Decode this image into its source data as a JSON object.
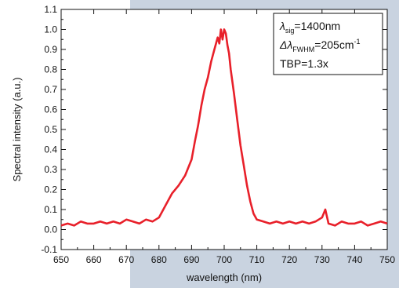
{
  "chart_data": {
    "type": "line",
    "xlabel": "wavelength (nm)",
    "ylabel": "Spectral intensity (a.u.)",
    "xlim": [
      650,
      750
    ],
    "ylim": [
      -0.1,
      1.1
    ],
    "x_ticks": [
      "650",
      "660",
      "670",
      "680",
      "690",
      "700",
      "710",
      "720",
      "730",
      "740",
      "750"
    ],
    "y_ticks": [
      "-0.1",
      "0.0",
      "0.1",
      "0.2",
      "0.3",
      "0.4",
      "0.5",
      "0.6",
      "0.7",
      "0.8",
      "0.9",
      "1.0",
      "1.1"
    ],
    "grid": false,
    "series_color": "#e8202a",
    "annotation": {
      "line1": {
        "sym": "λ",
        "sub": "sig",
        "text": "=1400nm"
      },
      "line2": {
        "sym": "Δλ",
        "sub": "FWHM",
        "text": "=205cm",
        "sup": "-1"
      },
      "line3": {
        "text": "TBP=1.3x"
      }
    },
    "series": [
      {
        "x": [
          650,
          652,
          654,
          656,
          658,
          660,
          662,
          664,
          666,
          668,
          670,
          672,
          674,
          676,
          678,
          680,
          682,
          684,
          686,
          688,
          690,
          691,
          692,
          693,
          694,
          695,
          696,
          697,
          698,
          698.5,
          699,
          699.5,
          700,
          700.5,
          701,
          701.5,
          702,
          703,
          704,
          705,
          706,
          707,
          708,
          709,
          710,
          712,
          714,
          716,
          718,
          720,
          722,
          724,
          726,
          728,
          730,
          731,
          732,
          734,
          736,
          738,
          740,
          742,
          744,
          746,
          748,
          750
        ],
        "y": [
          0.02,
          0.03,
          0.02,
          0.04,
          0.03,
          0.03,
          0.04,
          0.03,
          0.04,
          0.03,
          0.05,
          0.04,
          0.03,
          0.05,
          0.04,
          0.06,
          0.12,
          0.18,
          0.22,
          0.27,
          0.35,
          0.44,
          0.52,
          0.62,
          0.7,
          0.76,
          0.84,
          0.9,
          0.96,
          0.93,
          1.0,
          0.95,
          1.0,
          0.98,
          0.92,
          0.88,
          0.8,
          0.68,
          0.55,
          0.42,
          0.32,
          0.22,
          0.14,
          0.08,
          0.05,
          0.04,
          0.03,
          0.04,
          0.03,
          0.04,
          0.03,
          0.04,
          0.03,
          0.04,
          0.06,
          0.1,
          0.03,
          0.02,
          0.04,
          0.03,
          0.03,
          0.04,
          0.02,
          0.03,
          0.04,
          0.03
        ]
      }
    ]
  }
}
